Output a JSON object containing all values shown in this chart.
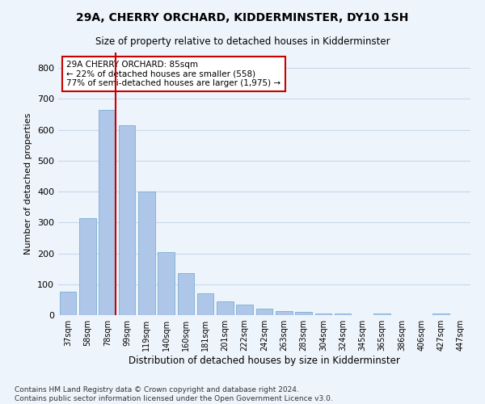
{
  "title": "29A, CHERRY ORCHARD, KIDDERMINSTER, DY10 1SH",
  "subtitle": "Size of property relative to detached houses in Kidderminster",
  "xlabel": "Distribution of detached houses by size in Kidderminster",
  "ylabel": "Number of detached properties",
  "footer": "Contains HM Land Registry data © Crown copyright and database right 2024.\nContains public sector information licensed under the Open Government Licence v3.0.",
  "categories": [
    "37sqm",
    "58sqm",
    "78sqm",
    "99sqm",
    "119sqm",
    "140sqm",
    "160sqm",
    "181sqm",
    "201sqm",
    "222sqm",
    "242sqm",
    "263sqm",
    "283sqm",
    "304sqm",
    "324sqm",
    "345sqm",
    "365sqm",
    "386sqm",
    "406sqm",
    "427sqm",
    "447sqm"
  ],
  "values": [
    75,
    315,
    665,
    615,
    400,
    205,
    135,
    70,
    45,
    35,
    20,
    12,
    10,
    5,
    5,
    0,
    5,
    0,
    0,
    5,
    0
  ],
  "bar_color": "#aec6e8",
  "bar_edge_color": "#7aafd4",
  "grid_color": "#c8d8ea",
  "background_color": "#eef4fb",
  "property_bin_index": 2,
  "vline_color": "#cc0000",
  "annotation_text": "29A CHERRY ORCHARD: 85sqm\n← 22% of detached houses are smaller (558)\n77% of semi-detached houses are larger (1,975) →",
  "annotation_box_color": "#ffffff",
  "annotation_box_edge_color": "#cc0000",
  "ylim": [
    0,
    850
  ],
  "yticks": [
    0,
    100,
    200,
    300,
    400,
    500,
    600,
    700,
    800
  ]
}
